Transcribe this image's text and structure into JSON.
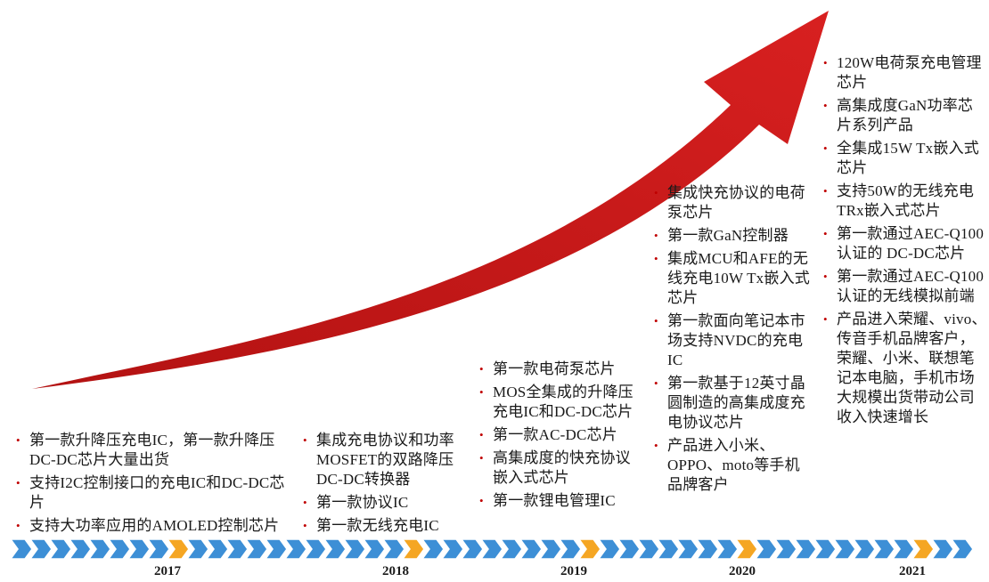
{
  "timeline": {
    "years": [
      "2017",
      "2018",
      "2019",
      "2020",
      "2021"
    ],
    "colors": {
      "chevron": "#3d8fd6",
      "highlight": "#f5a623",
      "arrow": "#c00000",
      "bullet": "#c00000"
    }
  },
  "milestones": [
    {
      "year": "2017",
      "items": [
        "第一款升降压充电IC，第一款升降压DC-DC芯片大量出货",
        "支持I2C控制接口的充电IC和DC-DC芯片",
        "支持大功率应用的AMOLED控制芯片"
      ]
    },
    {
      "year": "2018",
      "items": [
        "集成充电协议和功率MOSFET的双路降压DC-DC转换器",
        "第一款协议IC",
        "第一款无线充电IC"
      ]
    },
    {
      "year": "2019",
      "items": [
        "第一款电荷泵芯片",
        "MOS全集成的升降压充电IC和DC-DC芯片",
        "第一款AC-DC芯片",
        "高集成度的快充协议嵌入式芯片",
        "第一款锂电管理IC"
      ]
    },
    {
      "year": "2020",
      "items": [
        "集成快充协议的电荷泵芯片",
        "第一款GaN控制器",
        "集成MCU和AFE的无线充电10W Tx嵌入式芯片",
        "第一款面向笔记本市场支持NVDC的充电IC",
        "第一款基于12英寸晶圆制造的高集成度充电协议芯片",
        "产品进入小米、OPPO、moto等手机品牌客户"
      ]
    },
    {
      "year": "2021",
      "items": [
        "120W电荷泵充电管理芯片",
        "高集成度GaN功率芯片系列产品",
        "全集成15W Tx嵌入式芯片",
        "支持50W的无线充电TRx嵌入式芯片",
        "第一款通过AEC-Q100认证的 DC-DC芯片",
        "第一款通过AEC-Q100认证的无线模拟前端",
        "产品进入荣耀、vivo、传音手机品牌客户，荣耀、小米、联想笔记本电脑，手机市场大规模出货带动公司收入快速增长"
      ]
    }
  ]
}
